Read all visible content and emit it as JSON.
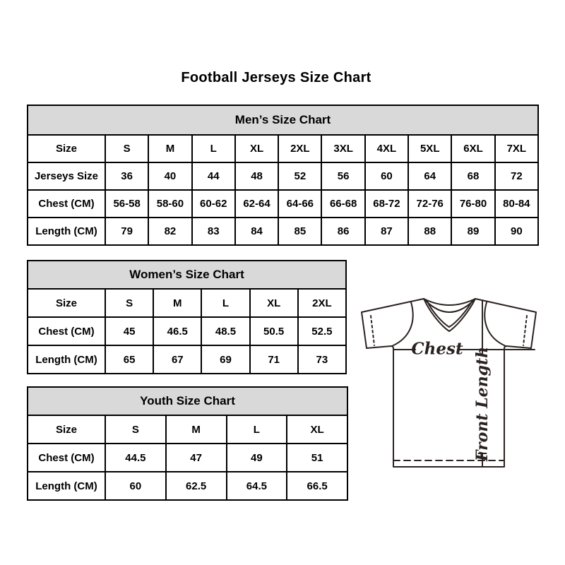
{
  "page_title": "Football Jerseys Size Chart",
  "tables": [
    {
      "id": "mens",
      "title": "Men’s Size Chart",
      "rows": [
        [
          "Size",
          "S",
          "M",
          "L",
          "XL",
          "2XL",
          "3XL",
          "4XL",
          "5XL",
          "6XL",
          "7XL"
        ],
        [
          "Jerseys Size",
          "36",
          "40",
          "44",
          "48",
          "52",
          "56",
          "60",
          "64",
          "68",
          "72"
        ],
        [
          "Chest (CM)",
          "56-58",
          "58-60",
          "60-62",
          "62-64",
          "64-66",
          "66-68",
          "68-72",
          "72-76",
          "76-80",
          "80-84"
        ],
        [
          "Length (CM)",
          "79",
          "82",
          "83",
          "84",
          "85",
          "86",
          "87",
          "88",
          "89",
          "90"
        ]
      ]
    },
    {
      "id": "womens",
      "title": "Women’s Size Chart",
      "rows": [
        [
          "Size",
          "S",
          "M",
          "L",
          "XL",
          "2XL"
        ],
        [
          "Chest (CM)",
          "45",
          "46.5",
          "48.5",
          "50.5",
          "52.5"
        ],
        [
          "Length (CM)",
          "65",
          "67",
          "69",
          "71",
          "73"
        ]
      ]
    },
    {
      "id": "youth",
      "title": "Youth Size Chart",
      "rows": [
        [
          "Size",
          "S",
          "M",
          "L",
          "XL"
        ],
        [
          "Chest (CM)",
          "44.5",
          "47",
          "49",
          "51"
        ],
        [
          "Length (CM)",
          "60",
          "62.5",
          "64.5",
          "66.5"
        ]
      ]
    }
  ],
  "diagram": {
    "chest_label": "Chest",
    "front_length_label": "Front Length"
  },
  "colors": {
    "table_header_bg": "#d9d9d9",
    "table_border": "#000000",
    "diagram_line": "#2a2220"
  }
}
